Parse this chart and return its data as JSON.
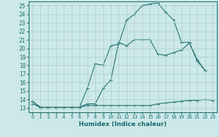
{
  "xlabel": "Humidex (Indice chaleur)",
  "xlim": [
    -0.5,
    23.5
  ],
  "ylim": [
    12.5,
    25.5
  ],
  "xticks": [
    0,
    1,
    2,
    3,
    4,
    5,
    6,
    7,
    8,
    9,
    10,
    11,
    12,
    13,
    14,
    15,
    16,
    17,
    18,
    19,
    20,
    21,
    22,
    23
  ],
  "yticks": [
    13,
    14,
    15,
    16,
    17,
    18,
    19,
    20,
    21,
    22,
    23,
    24,
    25
  ],
  "background_color": "#cce8e8",
  "grid_color": "#aacccc",
  "line_color": "#1a6b6b",
  "line1_y": [
    13.5,
    13.1,
    13.1,
    13.1,
    13.1,
    13.1,
    13.1,
    13.3,
    13.3,
    13.3,
    13.3,
    13.3,
    13.3,
    13.3,
    13.3,
    13.3,
    13.5,
    13.6,
    13.7,
    13.8,
    13.9,
    13.9,
    14.0,
    13.9
  ],
  "line2_x": [
    0,
    1,
    2,
    3,
    4,
    5,
    6,
    7,
    8,
    9,
    10,
    11,
    12,
    13,
    14,
    15,
    16,
    17,
    18,
    19,
    20,
    21,
    22
  ],
  "line2_y": [
    13.8,
    13.1,
    13.1,
    13.1,
    13.1,
    13.1,
    13.1,
    15.3,
    18.2,
    18.0,
    20.3,
    20.5,
    23.3,
    24.0,
    25.0,
    25.2,
    25.3,
    24.2,
    23.3,
    20.7,
    20.7,
    18.5,
    17.4
  ],
  "line3_x": [
    0,
    1,
    2,
    3,
    4,
    5,
    6,
    7,
    8,
    9,
    10,
    11,
    12,
    13,
    14,
    15,
    16,
    17,
    18,
    19,
    20,
    21,
    22
  ],
  "line3_y": [
    13.8,
    13.1,
    13.1,
    13.1,
    13.1,
    13.1,
    13.1,
    13.5,
    13.5,
    15.3,
    16.3,
    20.7,
    20.3,
    21.0,
    21.0,
    21.0,
    19.3,
    19.2,
    19.5,
    19.8,
    20.6,
    18.7,
    17.4
  ]
}
